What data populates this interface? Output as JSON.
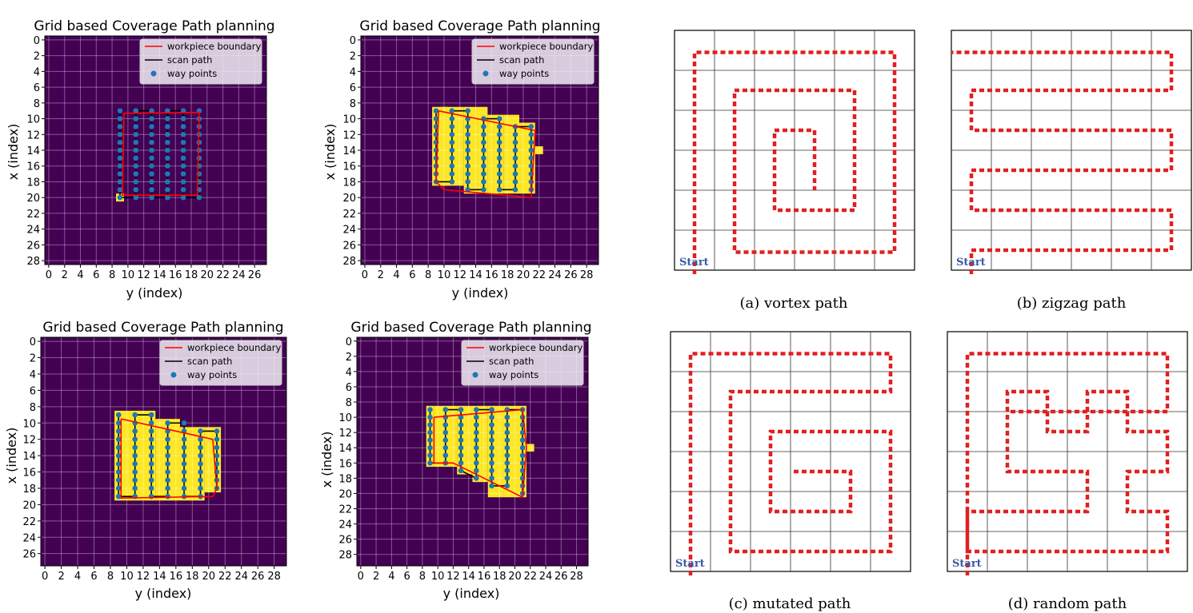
{
  "colors": {
    "background": "#440154",
    "workpiece_cell": "#fde725",
    "boundary": "#ff0000",
    "scan_path": "#000000",
    "waypoint": "#1f77b4",
    "dashed_path": "#e02020",
    "start_label": "#3a5aa8"
  },
  "chart_data": [
    {
      "type": "heatmap",
      "title": "Grid based Coverage Path planning",
      "xlabel": "y (index)",
      "ylabel": "x (index)",
      "xticks": [
        "0",
        "2",
        "4",
        "6",
        "8",
        "10",
        "12",
        "14",
        "16",
        "18",
        "20",
        "22",
        "24",
        "26"
      ],
      "yticks": [
        "0",
        "2",
        "4",
        "6",
        "8",
        "10",
        "12",
        "14",
        "16",
        "18",
        "20",
        "22",
        "24",
        "26",
        "28"
      ],
      "xlim": [
        -0.5,
        27.5
      ],
      "ylim": [
        -0.5,
        28.5
      ],
      "legend_position": "upper-right",
      "legend": [
        "workpiece boundary",
        "scan path",
        "way points"
      ],
      "cells": [
        [
          9,
          9,
          20,
          20
        ]
      ],
      "boundary": [
        [
          9.5,
          9.3
        ],
        [
          19,
          9.2
        ],
        [
          18.8,
          19.7
        ],
        [
          9.3,
          19.7
        ],
        [
          9.5,
          9.3
        ]
      ],
      "scan_columns": [
        9,
        11,
        13,
        15,
        17,
        19
      ],
      "scan_rows": [
        9,
        20
      ],
      "waypoints_per_column": [
        [
          9,
          20
        ],
        [
          9,
          20
        ],
        [
          9,
          20
        ],
        [
          9,
          20
        ],
        [
          9,
          20
        ],
        [
          9,
          20
        ]
      ]
    },
    {
      "type": "heatmap",
      "title": "Grid based Coverage Path planning",
      "xlabel": "y (index)",
      "ylabel": "x (index)",
      "xticks": [
        "0",
        "2",
        "4",
        "6",
        "8",
        "10",
        "12",
        "14",
        "16",
        "18",
        "20",
        "22",
        "24",
        "26",
        "28"
      ],
      "yticks": [
        "0",
        "2",
        "4",
        "6",
        "8",
        "10",
        "12",
        "14",
        "16",
        "18",
        "20",
        "22",
        "24",
        "26",
        "28"
      ],
      "xlim": [
        -0.5,
        29.5
      ],
      "ylim": [
        -0.5,
        28.5
      ],
      "legend_position": "upper-right",
      "legend": [
        "workpiece boundary",
        "scan path",
        "way points"
      ],
      "cells": [
        [
          9,
          10,
          9,
          18
        ],
        [
          10,
          12,
          9,
          18
        ],
        [
          13,
          15,
          9,
          19
        ],
        [
          16,
          17,
          10,
          19
        ],
        [
          18,
          19,
          10,
          19
        ],
        [
          20,
          21,
          11,
          19
        ],
        [
          22,
          22,
          14,
          14
        ]
      ],
      "boundary": [
        [
          9.3,
          9
        ],
        [
          21.5,
          11.5
        ],
        [
          21,
          20
        ],
        [
          10,
          19
        ],
        [
          9,
          18
        ],
        [
          9.3,
          9
        ]
      ],
      "scan_columns": [
        9,
        11,
        13,
        15,
        17,
        19,
        21
      ],
      "scan_rows": [
        9,
        19
      ],
      "waypoints_per_column": [
        [
          9,
          18
        ],
        [
          9,
          18
        ],
        [
          9,
          19
        ],
        [
          10,
          19
        ],
        [
          10,
          19
        ],
        [
          11,
          19
        ],
        [
          11,
          19
        ]
      ]
    },
    {
      "type": "heatmap",
      "title": "Grid based Coverage Path planning",
      "xlabel": "y (index)",
      "ylabel": "x (index)",
      "xticks": [
        "0",
        "2",
        "4",
        "6",
        "8",
        "10",
        "12",
        "14",
        "16",
        "18",
        "20",
        "22",
        "24",
        "26",
        "28"
      ],
      "yticks": [
        "0",
        "2",
        "4",
        "6",
        "8",
        "10",
        "12",
        "14",
        "16",
        "18",
        "20",
        "22",
        "24",
        "26"
      ],
      "xlim": [
        -0.5,
        29.5
      ],
      "ylim": [
        -0.5,
        27.5
      ],
      "legend_position": "upper-right",
      "legend": [
        "workpiece boundary",
        "scan path",
        "way points"
      ],
      "cells": [
        [
          9,
          10,
          9,
          19
        ],
        [
          11,
          13,
          9,
          19
        ],
        [
          14,
          16,
          10,
          19
        ],
        [
          17,
          19,
          11,
          19
        ],
        [
          20,
          21,
          11,
          18
        ]
      ],
      "boundary": [
        [
          9.3,
          9.5
        ],
        [
          20.5,
          12
        ],
        [
          21,
          18
        ],
        [
          20.5,
          19
        ],
        [
          9.3,
          19.2
        ],
        [
          9.3,
          9.5
        ]
      ],
      "scan_columns": [
        9,
        11,
        13,
        15,
        17,
        19,
        21
      ],
      "scan_rows": [
        9,
        19
      ],
      "waypoints_per_column": [
        [
          9,
          19
        ],
        [
          9,
          19
        ],
        [
          9,
          19
        ],
        [
          10,
          19
        ],
        [
          10,
          19
        ],
        [
          11,
          19
        ],
        [
          11,
          18
        ]
      ]
    },
    {
      "type": "heatmap",
      "title": "Grid based Coverage Path planning",
      "xlabel": "y (index)",
      "ylabel": "x (index)",
      "xticks": [
        "0",
        "2",
        "4",
        "6",
        "8",
        "10",
        "12",
        "14",
        "16",
        "18",
        "20",
        "22",
        "24",
        "26",
        "28"
      ],
      "yticks": [
        "0",
        "2",
        "4",
        "6",
        "8",
        "10",
        "12",
        "14",
        "16",
        "18",
        "20",
        "22",
        "24",
        "26",
        "28"
      ],
      "xlim": [
        -0.5,
        29.5
      ],
      "ylim": [
        -0.5,
        29.5
      ],
      "legend_position": "upper-right",
      "legend": [
        "workpiece boundary",
        "scan path",
        "way points"
      ],
      "cells": [
        [
          9,
          9,
          9,
          16
        ],
        [
          10,
          12,
          9,
          16
        ],
        [
          13,
          14,
          9,
          17
        ],
        [
          15,
          16,
          9,
          18
        ],
        [
          17,
          18,
          9,
          20
        ],
        [
          19,
          21,
          9,
          20
        ],
        [
          22,
          22,
          14,
          14
        ]
      ],
      "boundary": [
        [
          9.5,
          10
        ],
        [
          21,
          9
        ],
        [
          21.5,
          14
        ],
        [
          21,
          20.5
        ],
        [
          12,
          16
        ],
        [
          9.5,
          16
        ],
        [
          9.5,
          10
        ]
      ],
      "scan_columns": [
        9,
        11,
        13,
        15,
        17,
        19,
        21
      ],
      "scan_rows": [
        9,
        16,
        19,
        20
      ],
      "waypoints_per_column": [
        [
          9,
          16
        ],
        [
          9,
          16
        ],
        [
          9,
          17
        ],
        [
          9,
          18
        ],
        [
          9,
          19
        ],
        [
          9,
          19
        ],
        [
          9,
          20
        ]
      ]
    }
  ],
  "path_diagrams": [
    {
      "caption": "(a)  vortex path",
      "start_label": "Start",
      "pattern": "vortex"
    },
    {
      "caption": "(b)  zigzag path",
      "start_label": "Start",
      "pattern": "zigzag"
    },
    {
      "caption": "(c)  mutated path",
      "start_label": "Start",
      "pattern": "mutated"
    },
    {
      "caption": "(d)  random path",
      "start_label": "Start",
      "pattern": "random"
    }
  ]
}
